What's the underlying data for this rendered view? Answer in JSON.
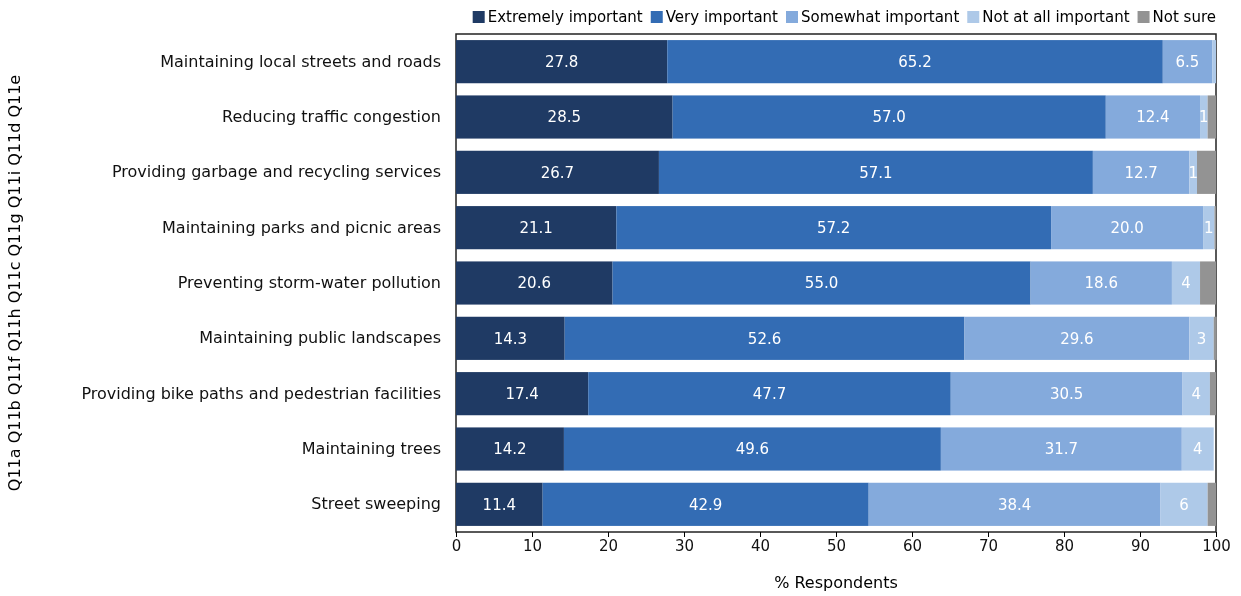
{
  "chart_data": {
    "type": "bar",
    "orientation": "horizontal",
    "stacked": true,
    "xlabel": "% Respondents",
    "ylabel": "Q11a Q11b Q11f Q11h Q11c Q11g Q11i Q11d Q11e",
    "categories": [
      "Maintaining local streets and roads",
      "Reducing traffic congestion",
      "Providing garbage and recycling services",
      "Maintaining parks and picnic areas",
      "Preventing storm-water pollution",
      "Maintaining public landscapes",
      "Providing bike paths and pedestrian facilities",
      "Maintaining trees",
      "Street sweeping"
    ],
    "series": [
      {
        "name": "Extremely important",
        "color": "#1f3a64",
        "values": [
          27.8,
          28.5,
          26.7,
          21.1,
          20.6,
          14.3,
          17.4,
          14.2,
          11.4
        ],
        "value_labels": [
          "27.8",
          "28.5",
          "26.7",
          "21.1",
          "20.6",
          "14.3",
          "17.4",
          "14.2",
          "11.4"
        ]
      },
      {
        "name": "Very important",
        "color": "#336cb4",
        "values": [
          65.2,
          57.0,
          57.1,
          57.2,
          55.0,
          52.6,
          47.7,
          49.6,
          42.9
        ],
        "value_labels": [
          "65.2",
          "57.0",
          "57.1",
          "57.2",
          "55.0",
          "52.6",
          "47.7",
          "49.6",
          "42.9"
        ]
      },
      {
        "name": "Somewhat important",
        "color": "#84aadc",
        "values": [
          6.5,
          12.4,
          12.7,
          20.0,
          18.6,
          29.6,
          30.5,
          31.7,
          38.4
        ],
        "value_labels": [
          "6.5",
          "12.4",
          "12.7",
          "20.0",
          "18.6",
          "29.6",
          "30.5",
          "31.7",
          "38.4"
        ]
      },
      {
        "name": "Not at all important",
        "color": "#aec9e8",
        "values": [
          0.5,
          1.0,
          1.0,
          1.5,
          3.7,
          3.2,
          3.6,
          4.2,
          6.2
        ],
        "value_labels": [
          null,
          "1",
          "1",
          "1",
          "4",
          "3",
          "4",
          "4",
          "6"
        ]
      },
      {
        "name": "Not sure",
        "color": "#939393",
        "values": [
          0,
          1.1,
          2.5,
          0.2,
          2.1,
          0.4,
          0.8,
          null,
          1.1
        ],
        "value_labels": [
          null,
          null,
          null,
          null,
          null,
          null,
          null,
          null,
          null
        ]
      }
    ],
    "xlim": [
      0,
      100
    ],
    "xticks": [
      0,
      10,
      20,
      30,
      40,
      50,
      60,
      70,
      80,
      90,
      100
    ],
    "grid": false,
    "legend": "top"
  }
}
